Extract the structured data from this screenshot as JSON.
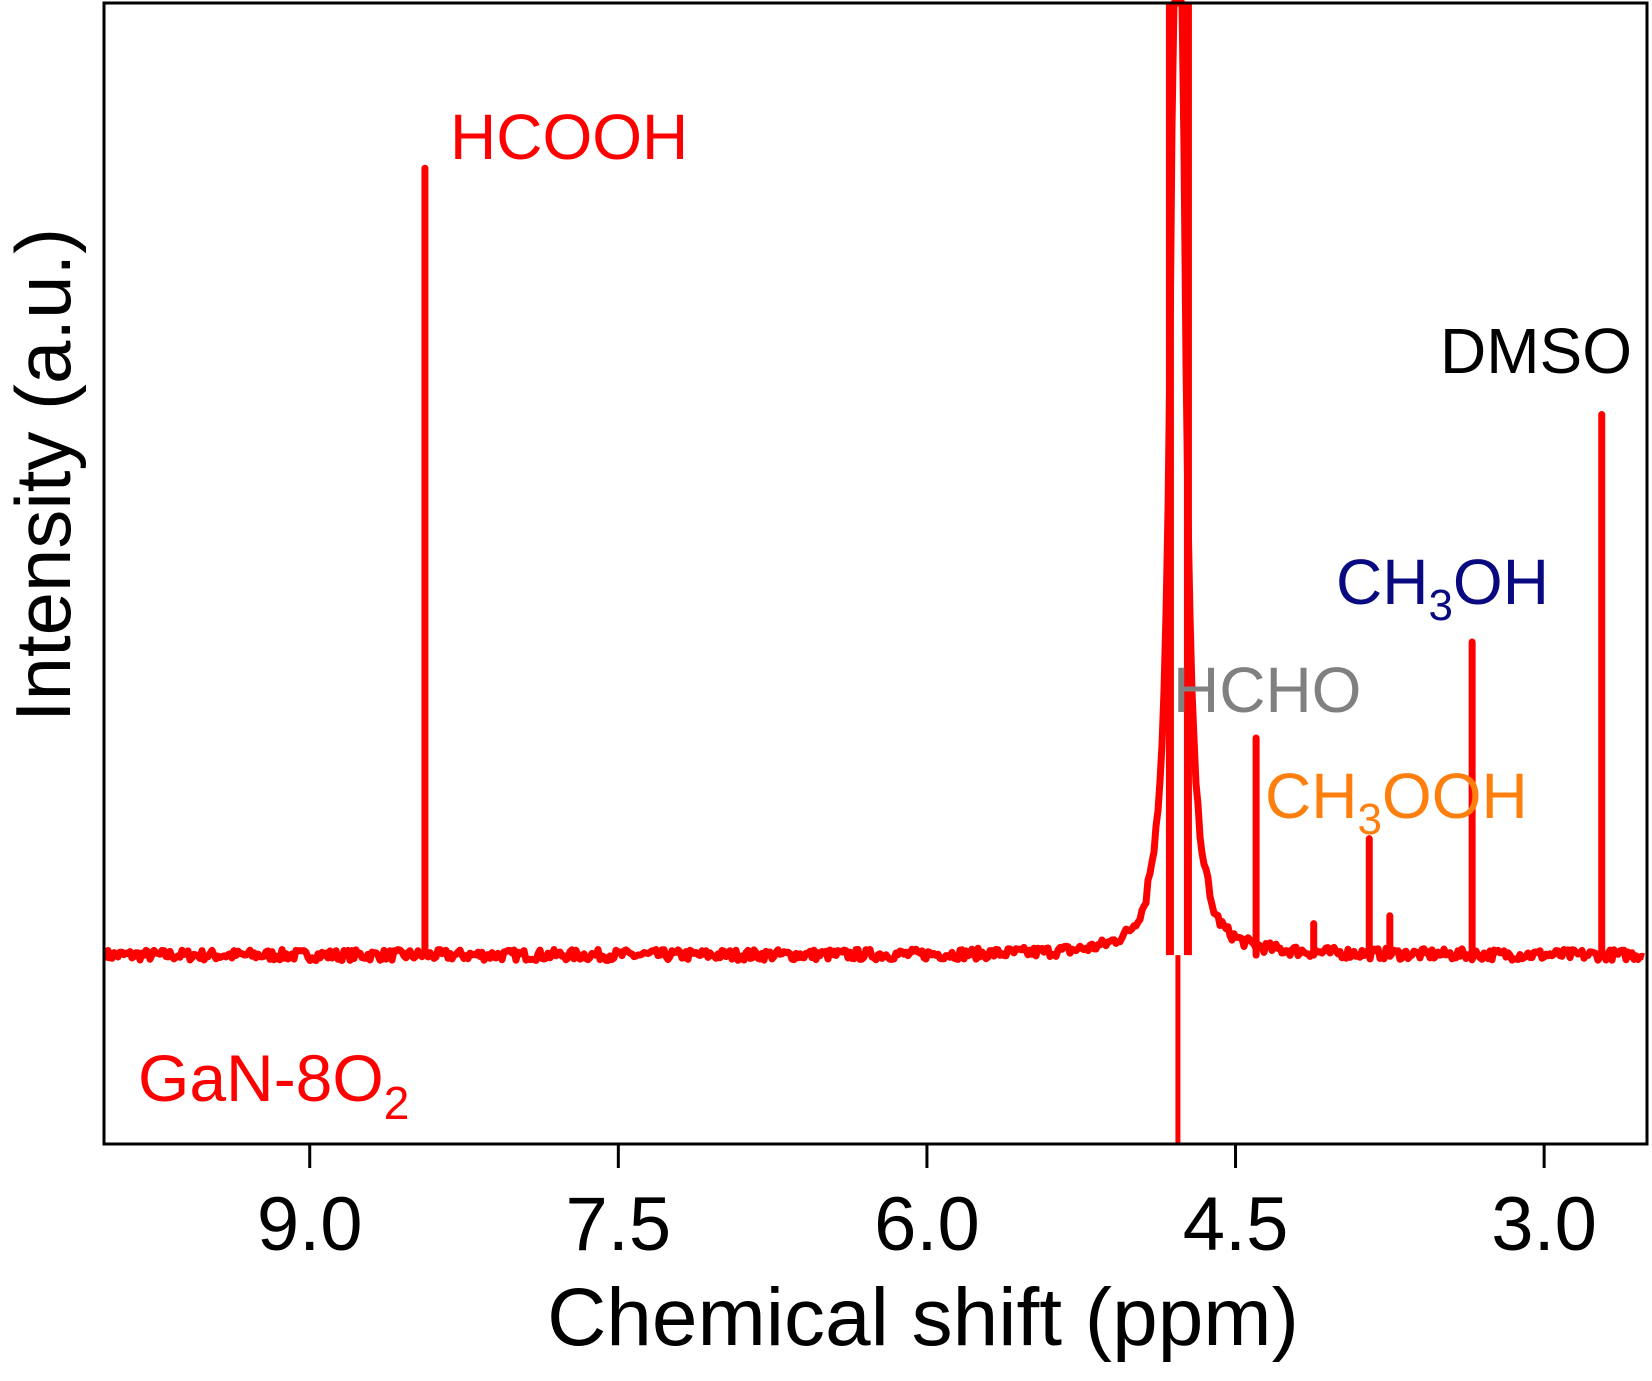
{
  "chart_data": {
    "type": "line",
    "xlabel": "Chemical shift (ppm)",
    "ylabel": "Intensity (a.u.)",
    "xlim": [
      10.0,
      2.5
    ],
    "x_reversed": true,
    "ylim": [
      -24,
      121
    ],
    "xticks": [
      9.0,
      7.5,
      6.0,
      4.5,
      3.0
    ],
    "xtick_labels": [
      "9.0",
      "7.5",
      "6.0",
      "4.5",
      "3.0"
    ],
    "yticks": [],
    "grid": false,
    "line_color": "#ff0000",
    "sample_label": {
      "text": "GaN-8O",
      "subscript": "2",
      "color": "#ff0000"
    },
    "baseline": 0,
    "water_peak": {
      "x": 4.78,
      "y": "off-scale"
    },
    "peaks": [
      {
        "x": 8.44,
        "y": 100
      },
      {
        "x": 4.4,
        "y": 27.6
      },
      {
        "x": 4.12,
        "y": 4.0
      },
      {
        "x": 3.85,
        "y": 14.8
      },
      {
        "x": 3.75,
        "y": 5.0
      },
      {
        "x": 3.35,
        "y": 39.8
      },
      {
        "x": 2.72,
        "y": 68.7
      }
    ],
    "annotations": [
      {
        "id": "hcooh",
        "text": "HCOOH",
        "sub": "",
        "rest": "",
        "color": "#ff0000"
      },
      {
        "id": "dmso",
        "text": "DMSO",
        "sub": "",
        "rest": "",
        "color": "#000000"
      },
      {
        "id": "ch3oh",
        "text": "CH",
        "sub": "3",
        "rest": "OH",
        "color": "#0a0a80"
      },
      {
        "id": "hcho",
        "text": "HCHO",
        "sub": "",
        "rest": "",
        "color": "#808080"
      },
      {
        "id": "ch3ooh",
        "text": "CH",
        "sub": "3",
        "rest": "OOH",
        "color": "#ff7f0e"
      }
    ]
  }
}
